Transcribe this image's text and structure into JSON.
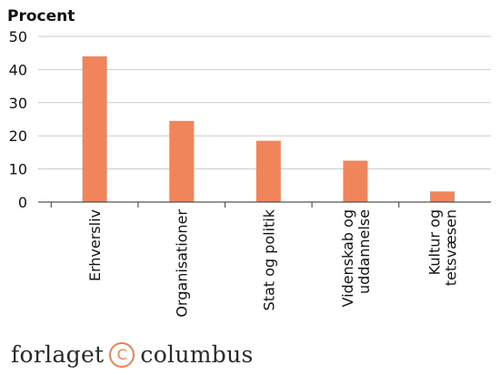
{
  "chart_data": {
    "type": "bar",
    "ylabel": "Procent",
    "categories": [
      [
        "Erhversliv"
      ],
      [
        "Organisationer"
      ],
      [
        "Stat og politik"
      ],
      [
        "Videnskab og",
        "uddannelse"
      ],
      [
        "Kultur og",
        "tetsvæsen"
      ]
    ],
    "values": [
      44,
      24.5,
      18.5,
      12.5,
      3.2
    ],
    "ylim": [
      0,
      50
    ],
    "yticks": [
      0,
      10,
      20,
      30,
      40,
      50
    ],
    "grid": true,
    "bar_color": "#f0845a"
  },
  "brand": {
    "left": "forlaget",
    "mark": "C",
    "right": "columbus",
    "accent_color": "#f08050"
  }
}
